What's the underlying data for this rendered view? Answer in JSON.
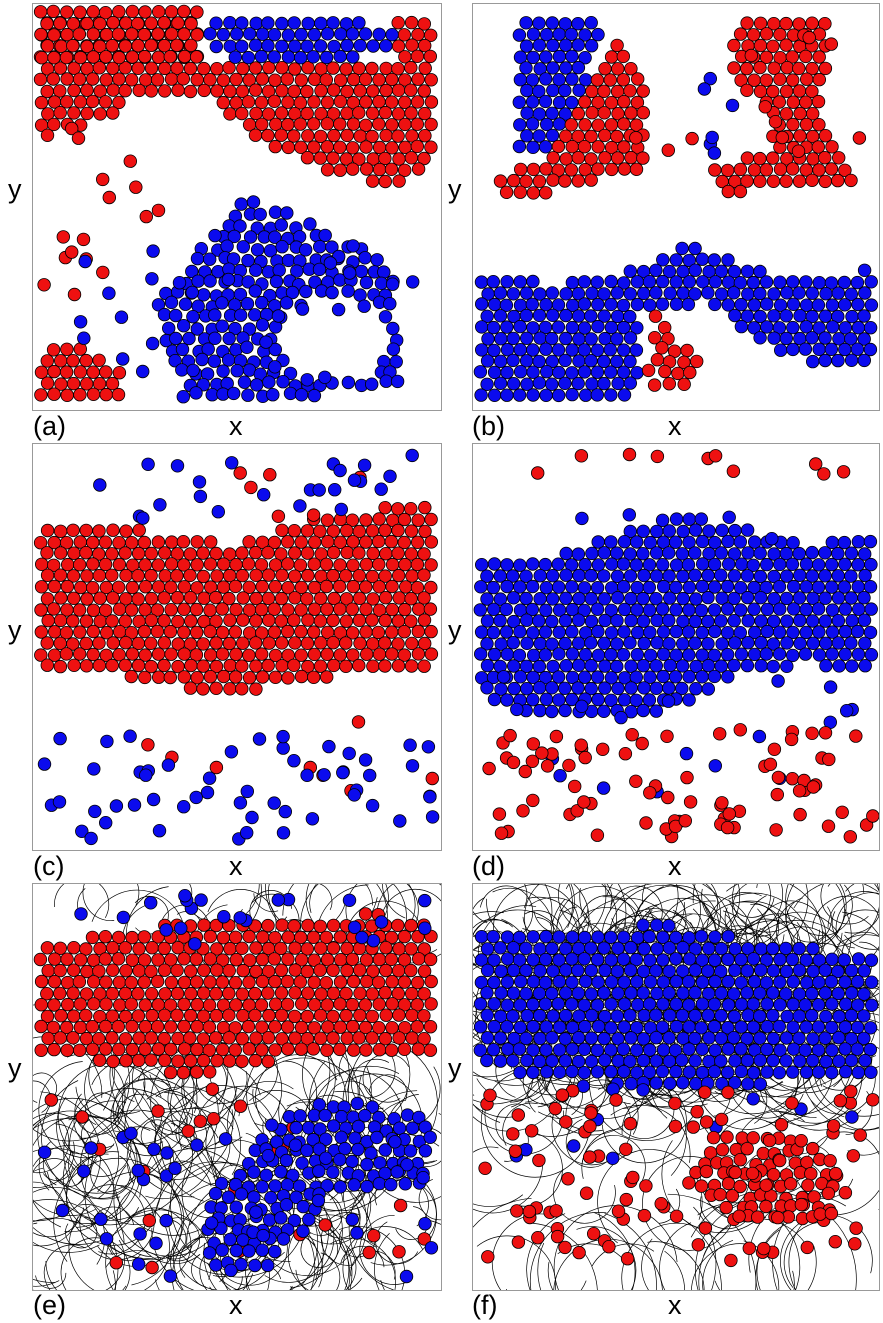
{
  "figure": {
    "axis_x_label": "x",
    "axis_y_label": "y",
    "colors": {
      "red_particle": "#ee1111",
      "blue_particle": "#0b0bee",
      "particle_outline": "#000000",
      "trajectory_line": "#000000",
      "frame": "#999999"
    },
    "panels": [
      {
        "label": "(a)",
        "description_kind": "red-blue-particle-snapshot",
        "has_trajectories": false
      },
      {
        "label": "(b)",
        "description_kind": "red-blue-particle-snapshot",
        "has_trajectories": false
      },
      {
        "label": "(c)",
        "description_kind": "red-blue-particle-snapshot",
        "has_trajectories": false
      },
      {
        "label": "(d)",
        "description_kind": "red-blue-particle-snapshot",
        "has_trajectories": false
      },
      {
        "label": "(e)",
        "description_kind": "red-blue-particle-snapshot",
        "has_trajectories": true
      },
      {
        "label": "(f)",
        "description_kind": "red-blue-particle-snapshot",
        "has_trajectories": true
      }
    ]
  }
}
